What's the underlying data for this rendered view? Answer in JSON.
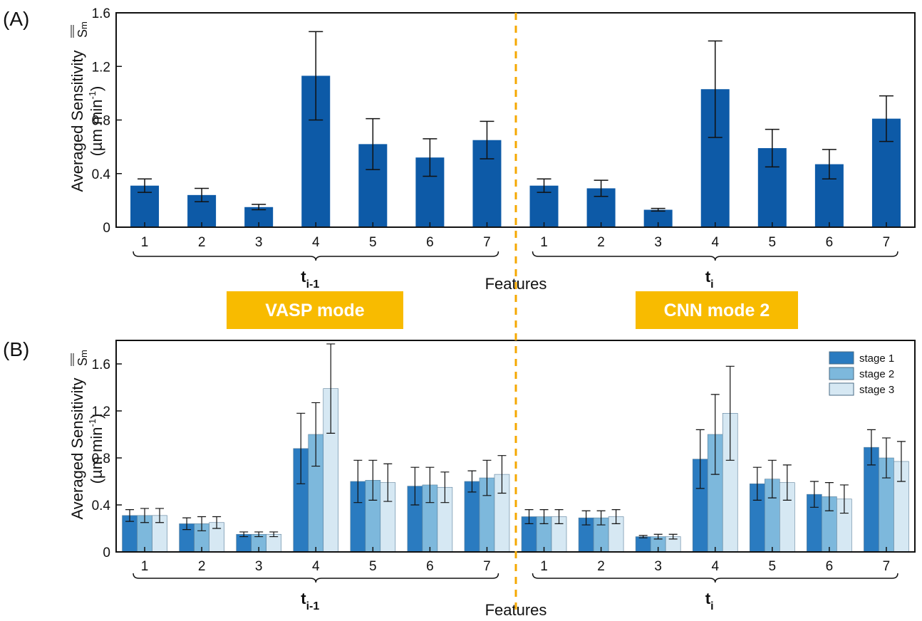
{
  "figure": {
    "panel_a_label": "(A)",
    "panel_b_label": "(B)",
    "mode_left": "VASP mode",
    "mode_right": "CNN mode 2",
    "colors": {
      "mode_bg": "#F8BB00",
      "divider": "#F5A800",
      "single": "#0D5AA7",
      "stage1": "#2A7BC0",
      "stage2": "#7DB8DC",
      "stage3": "#D6E8F3"
    }
  },
  "chart_data": [
    {
      "type": "bar",
      "panel": "A",
      "ylabel_line1": "Averaged Sensitivity",
      "ylabel_super": "S",
      "ylabel_super_sub": "m",
      "ylabel_units_pre": "(µm min",
      "ylabel_units_exp": "-1",
      "ylabel_units_post": ")",
      "xlabel": "Features",
      "ylim": [
        0,
        1.6
      ],
      "yticks": [
        "0",
        "0.4",
        "0.8",
        "1.2",
        "1.6"
      ],
      "groups": [
        {
          "label_main": "t",
          "label_sub": "i-1",
          "categories": [
            "1",
            "2",
            "3",
            "4",
            "5",
            "6",
            "7"
          ]
        },
        {
          "label_main": "t",
          "label_sub": "i",
          "categories": [
            "1",
            "2",
            "3",
            "4",
            "5",
            "6",
            "7"
          ]
        }
      ],
      "values": [
        0.31,
        0.24,
        0.15,
        1.13,
        0.62,
        0.52,
        0.65,
        0.31,
        0.29,
        0.13,
        1.03,
        0.59,
        0.47,
        0.81
      ],
      "errors": [
        0.05,
        0.05,
        0.02,
        0.33,
        0.19,
        0.14,
        0.14,
        0.05,
        0.06,
        0.01,
        0.36,
        0.14,
        0.11,
        0.17
      ]
    },
    {
      "type": "bar",
      "panel": "B",
      "ylabel_line1": "Averaged Sensitivity",
      "ylabel_super": "S",
      "ylabel_super_sub": "m",
      "ylabel_units_pre": "(µm min",
      "ylabel_units_exp": "-1",
      "ylabel_units_post": ")",
      "xlabel": "Features",
      "ylim": [
        0,
        1.8
      ],
      "yticks": [
        "0",
        "0.4",
        "0.8",
        "1.2",
        "1.6"
      ],
      "legend_position": "top-right",
      "groups": [
        {
          "label_main": "t",
          "label_sub": "i-1",
          "categories": [
            "1",
            "2",
            "3",
            "4",
            "5",
            "6",
            "7"
          ]
        },
        {
          "label_main": "t",
          "label_sub": "i",
          "categories": [
            "1",
            "2",
            "3",
            "4",
            "5",
            "6",
            "7"
          ]
        }
      ],
      "series": [
        {
          "name": "stage 1",
          "values": [
            0.31,
            0.24,
            0.15,
            0.88,
            0.6,
            0.56,
            0.6,
            0.3,
            0.29,
            0.13,
            0.79,
            0.58,
            0.49,
            0.89
          ],
          "errors": [
            0.05,
            0.05,
            0.02,
            0.3,
            0.18,
            0.16,
            0.09,
            0.06,
            0.06,
            0.01,
            0.25,
            0.14,
            0.11,
            0.15
          ]
        },
        {
          "name": "stage 2",
          "values": [
            0.31,
            0.24,
            0.15,
            1.0,
            0.61,
            0.57,
            0.63,
            0.3,
            0.29,
            0.13,
            1.0,
            0.62,
            0.47,
            0.8
          ],
          "errors": [
            0.06,
            0.06,
            0.02,
            0.27,
            0.17,
            0.15,
            0.15,
            0.06,
            0.06,
            0.02,
            0.34,
            0.16,
            0.12,
            0.17
          ]
        },
        {
          "name": "stage 3",
          "values": [
            0.31,
            0.25,
            0.15,
            1.39,
            0.59,
            0.55,
            0.66,
            0.3,
            0.3,
            0.13,
            1.18,
            0.59,
            0.45,
            0.77
          ],
          "errors": [
            0.06,
            0.05,
            0.02,
            0.38,
            0.16,
            0.13,
            0.16,
            0.06,
            0.06,
            0.02,
            0.4,
            0.15,
            0.12,
            0.17
          ]
        }
      ]
    }
  ]
}
